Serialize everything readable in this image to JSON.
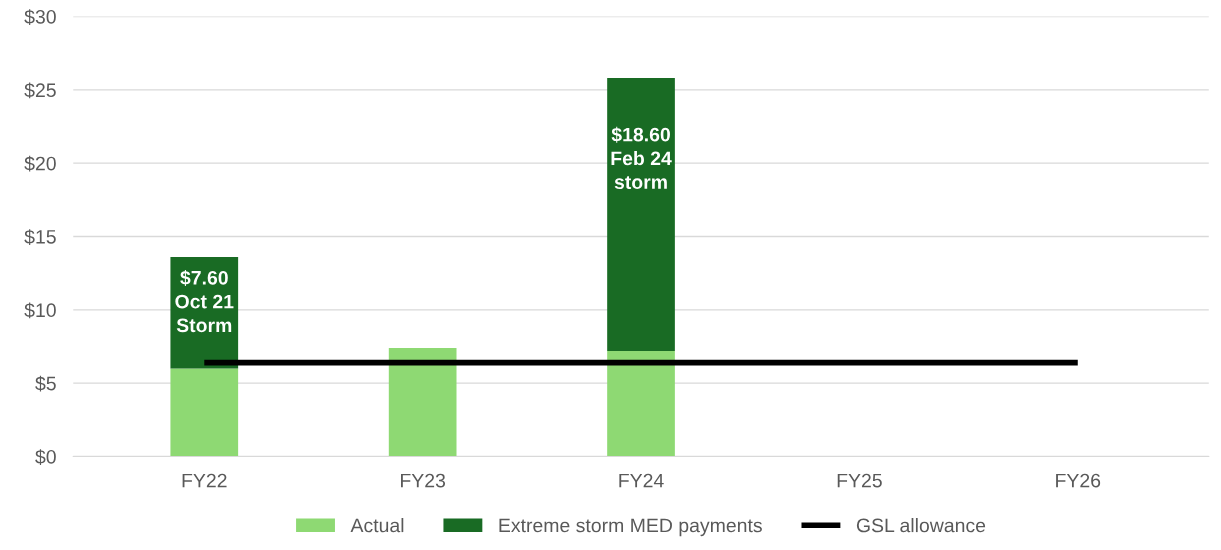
{
  "chart_data": {
    "type": "bar",
    "stacked": true,
    "categories": [
      "FY22",
      "FY23",
      "FY24",
      "FY25",
      "FY26"
    ],
    "series": [
      {
        "name": "Actual",
        "color": "#8ed973",
        "values": [
          6.0,
          7.4,
          7.2,
          null,
          null
        ]
      },
      {
        "name": "Extreme storm MED payments",
        "color": "#196b24",
        "values": [
          7.6,
          null,
          18.6,
          null,
          null
        ],
        "value_labels": [
          "$7.60\nOct 21\nStorm",
          null,
          "$18.60\nFeb 24\nstorm",
          null,
          null
        ]
      },
      {
        "name": "GSL allowance",
        "type": "line",
        "color": "#000000",
        "values": [
          6.4,
          6.4,
          6.4,
          6.4,
          6.4
        ]
      }
    ],
    "ylim": [
      0,
      30
    ],
    "yticks": [
      {
        "value": 0,
        "label": "$0"
      },
      {
        "value": 5,
        "label": "$5"
      },
      {
        "value": 10,
        "label": "$10"
      },
      {
        "value": 15,
        "label": "$15"
      },
      {
        "value": 20,
        "label": "$20"
      },
      {
        "value": 25,
        "label": "$25"
      },
      {
        "value": 30,
        "label": "$30"
      }
    ],
    "grid": "y",
    "legend": "bottom"
  }
}
